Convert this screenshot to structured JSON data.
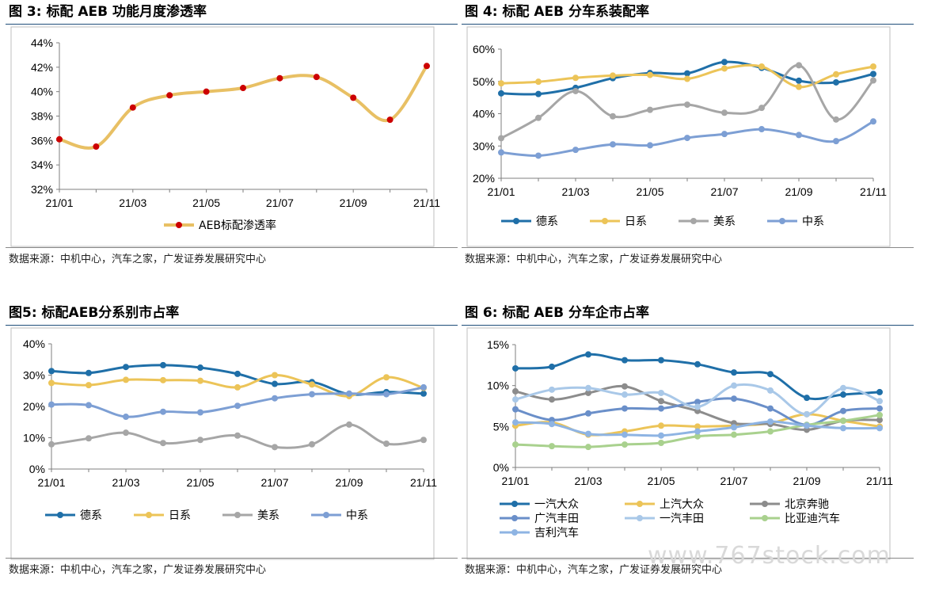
{
  "charts": [
    {
      "title": "图 3:  标配 AEB 功能月度渗透率",
      "source": "数据来源：中机中心，汽车之家，广发证券发展研究中心",
      "type": "line",
      "x": [
        "21/01",
        "21/02",
        "21/03",
        "21/04",
        "21/05",
        "21/06",
        "21/07",
        "21/08",
        "21/09",
        "21/10",
        "21/11"
      ],
      "xticks": [
        "21/01",
        "21/03",
        "21/05",
        "21/07",
        "21/09",
        "21/11"
      ],
      "ylim": [
        32,
        44
      ],
      "ystep": 2,
      "yunit": "%",
      "series": [
        {
          "name": "AEB标配渗透率",
          "color": "#e8c064",
          "marker_color": "#cc0000",
          "values": [
            36.1,
            35.5,
            38.7,
            39.7,
            40.0,
            40.3,
            41.1,
            41.2,
            39.5,
            37.7,
            42.1
          ]
        }
      ]
    },
    {
      "title": "图 4:  标配 AEB 分车系装配率",
      "source": "数据来源：中机中心，汽车之家，广发证券发展研究中心",
      "type": "line",
      "x": [
        "21/01",
        "21/02",
        "21/03",
        "21/04",
        "21/05",
        "21/06",
        "21/07",
        "21/08",
        "21/09",
        "21/10",
        "21/11"
      ],
      "xticks": [
        "21/01",
        "21/03",
        "21/05",
        "21/07",
        "21/09",
        "21/11"
      ],
      "ylim": [
        20,
        60
      ],
      "ystep": 10,
      "yunit": "%",
      "series": [
        {
          "name": "德系",
          "color": "#1f6fa8",
          "values": [
            46.3,
            46.1,
            48.0,
            51.0,
            52.6,
            52.5,
            56.0,
            54.2,
            50.2,
            49.7,
            52.3
          ]
        },
        {
          "name": "日系",
          "color": "#ecc458",
          "values": [
            49.4,
            49.9,
            51.1,
            51.8,
            52.0,
            50.8,
            54.0,
            54.6,
            48.3,
            52.2,
            54.6
          ]
        },
        {
          "name": "美系",
          "color": "#a6a6a6",
          "values": [
            32.4,
            38.7,
            47.0,
            39.2,
            41.2,
            42.8,
            40.3,
            41.8,
            55.0,
            38.2,
            50.3
          ]
        },
        {
          "name": "中系",
          "color": "#7d9fd4",
          "values": [
            28.0,
            27.0,
            28.8,
            30.5,
            30.2,
            32.5,
            33.7,
            35.2,
            33.4,
            31.5,
            37.6
          ]
        }
      ]
    },
    {
      "title": "图5:  标配AEB分系别市占率",
      "source": "数据来源：中机中心，汽车之家，广发证券发展研究中心",
      "type": "line",
      "x": [
        "21/01",
        "21/02",
        "21/03",
        "21/04",
        "21/05",
        "21/06",
        "21/07",
        "21/08",
        "21/09",
        "21/10",
        "21/11"
      ],
      "xticks": [
        "21/01",
        "21/03",
        "21/05",
        "21/07",
        "21/09",
        "21/11"
      ],
      "ylim": [
        0,
        40
      ],
      "ystep": 10,
      "yunit": "%",
      "series": [
        {
          "name": "德系",
          "color": "#1f6fa8",
          "values": [
            31.3,
            30.7,
            32.6,
            33.2,
            32.4,
            30.4,
            27.2,
            27.8,
            23.9,
            24.6,
            24.1
          ]
        },
        {
          "name": "日系",
          "color": "#ecc458",
          "values": [
            27.5,
            26.8,
            28.5,
            28.4,
            28.2,
            26.1,
            30.0,
            27.0,
            23.3,
            29.3,
            25.9
          ]
        },
        {
          "name": "美系",
          "color": "#a6a6a6",
          "values": [
            7.9,
            9.8,
            11.6,
            8.3,
            9.3,
            10.7,
            7.0,
            7.9,
            14.2,
            8.1,
            9.3
          ]
        },
        {
          "name": "中系",
          "color": "#7d9fd4",
          "values": [
            20.6,
            20.4,
            16.7,
            18.3,
            18.1,
            20.2,
            22.6,
            23.9,
            24.1,
            23.9,
            26.1
          ]
        }
      ]
    },
    {
      "title": "图 6:  标配 AEB 分车企市占率",
      "source": "数据来源：中机中心，汽车之家，广发证券发展研究中心",
      "type": "line",
      "x": [
        "21/01",
        "21/02",
        "21/03",
        "21/04",
        "21/05",
        "21/06",
        "21/07",
        "21/08",
        "21/09",
        "21/10",
        "21/11"
      ],
      "xticks": [
        "21/01",
        "21/03",
        "21/05",
        "21/07",
        "21/09",
        "21/11"
      ],
      "ylim": [
        0,
        15
      ],
      "ystep": 5,
      "yunit": "%",
      "series": [
        {
          "name": "一汽大众",
          "color": "#1f6fa8",
          "values": [
            12.1,
            12.3,
            13.8,
            13.1,
            13.1,
            12.6,
            11.6,
            11.4,
            8.5,
            8.9,
            9.2
          ]
        },
        {
          "name": "上汽大众",
          "color": "#ecc458",
          "values": [
            5.1,
            5.5,
            4.0,
            4.4,
            5.1,
            5.0,
            5.1,
            5.4,
            6.5,
            5.7,
            5.0
          ]
        },
        {
          "name": "北京奔驰",
          "color": "#8c8c8c",
          "values": [
            9.3,
            8.3,
            9.1,
            9.9,
            8.1,
            6.9,
            5.4,
            5.3,
            4.6,
            5.7,
            5.8
          ]
        },
        {
          "name": "广汽丰田",
          "color": "#6a8fc9",
          "values": [
            7.1,
            5.8,
            6.6,
            7.2,
            7.2,
            8.0,
            8.4,
            7.2,
            5.2,
            6.9,
            7.2
          ]
        },
        {
          "name": "一汽丰田",
          "color": "#a9c8e8",
          "values": [
            8.3,
            9.5,
            9.7,
            8.9,
            9.1,
            7.4,
            10.0,
            9.4,
            6.5,
            9.7,
            8.1
          ]
        },
        {
          "name": "比亚迪汽车",
          "color": "#a9d18e",
          "values": [
            2.8,
            2.6,
            2.5,
            2.8,
            3.0,
            3.8,
            4.0,
            4.4,
            5.2,
            5.7,
            6.4
          ]
        },
        {
          "name": "吉利汽车",
          "color": "#8eb4e3",
          "values": [
            5.5,
            5.3,
            4.1,
            4.0,
            3.9,
            4.4,
            4.9,
            5.6,
            5.1,
            4.8,
            4.8
          ]
        }
      ]
    }
  ],
  "watermark": "www.767stock.com"
}
